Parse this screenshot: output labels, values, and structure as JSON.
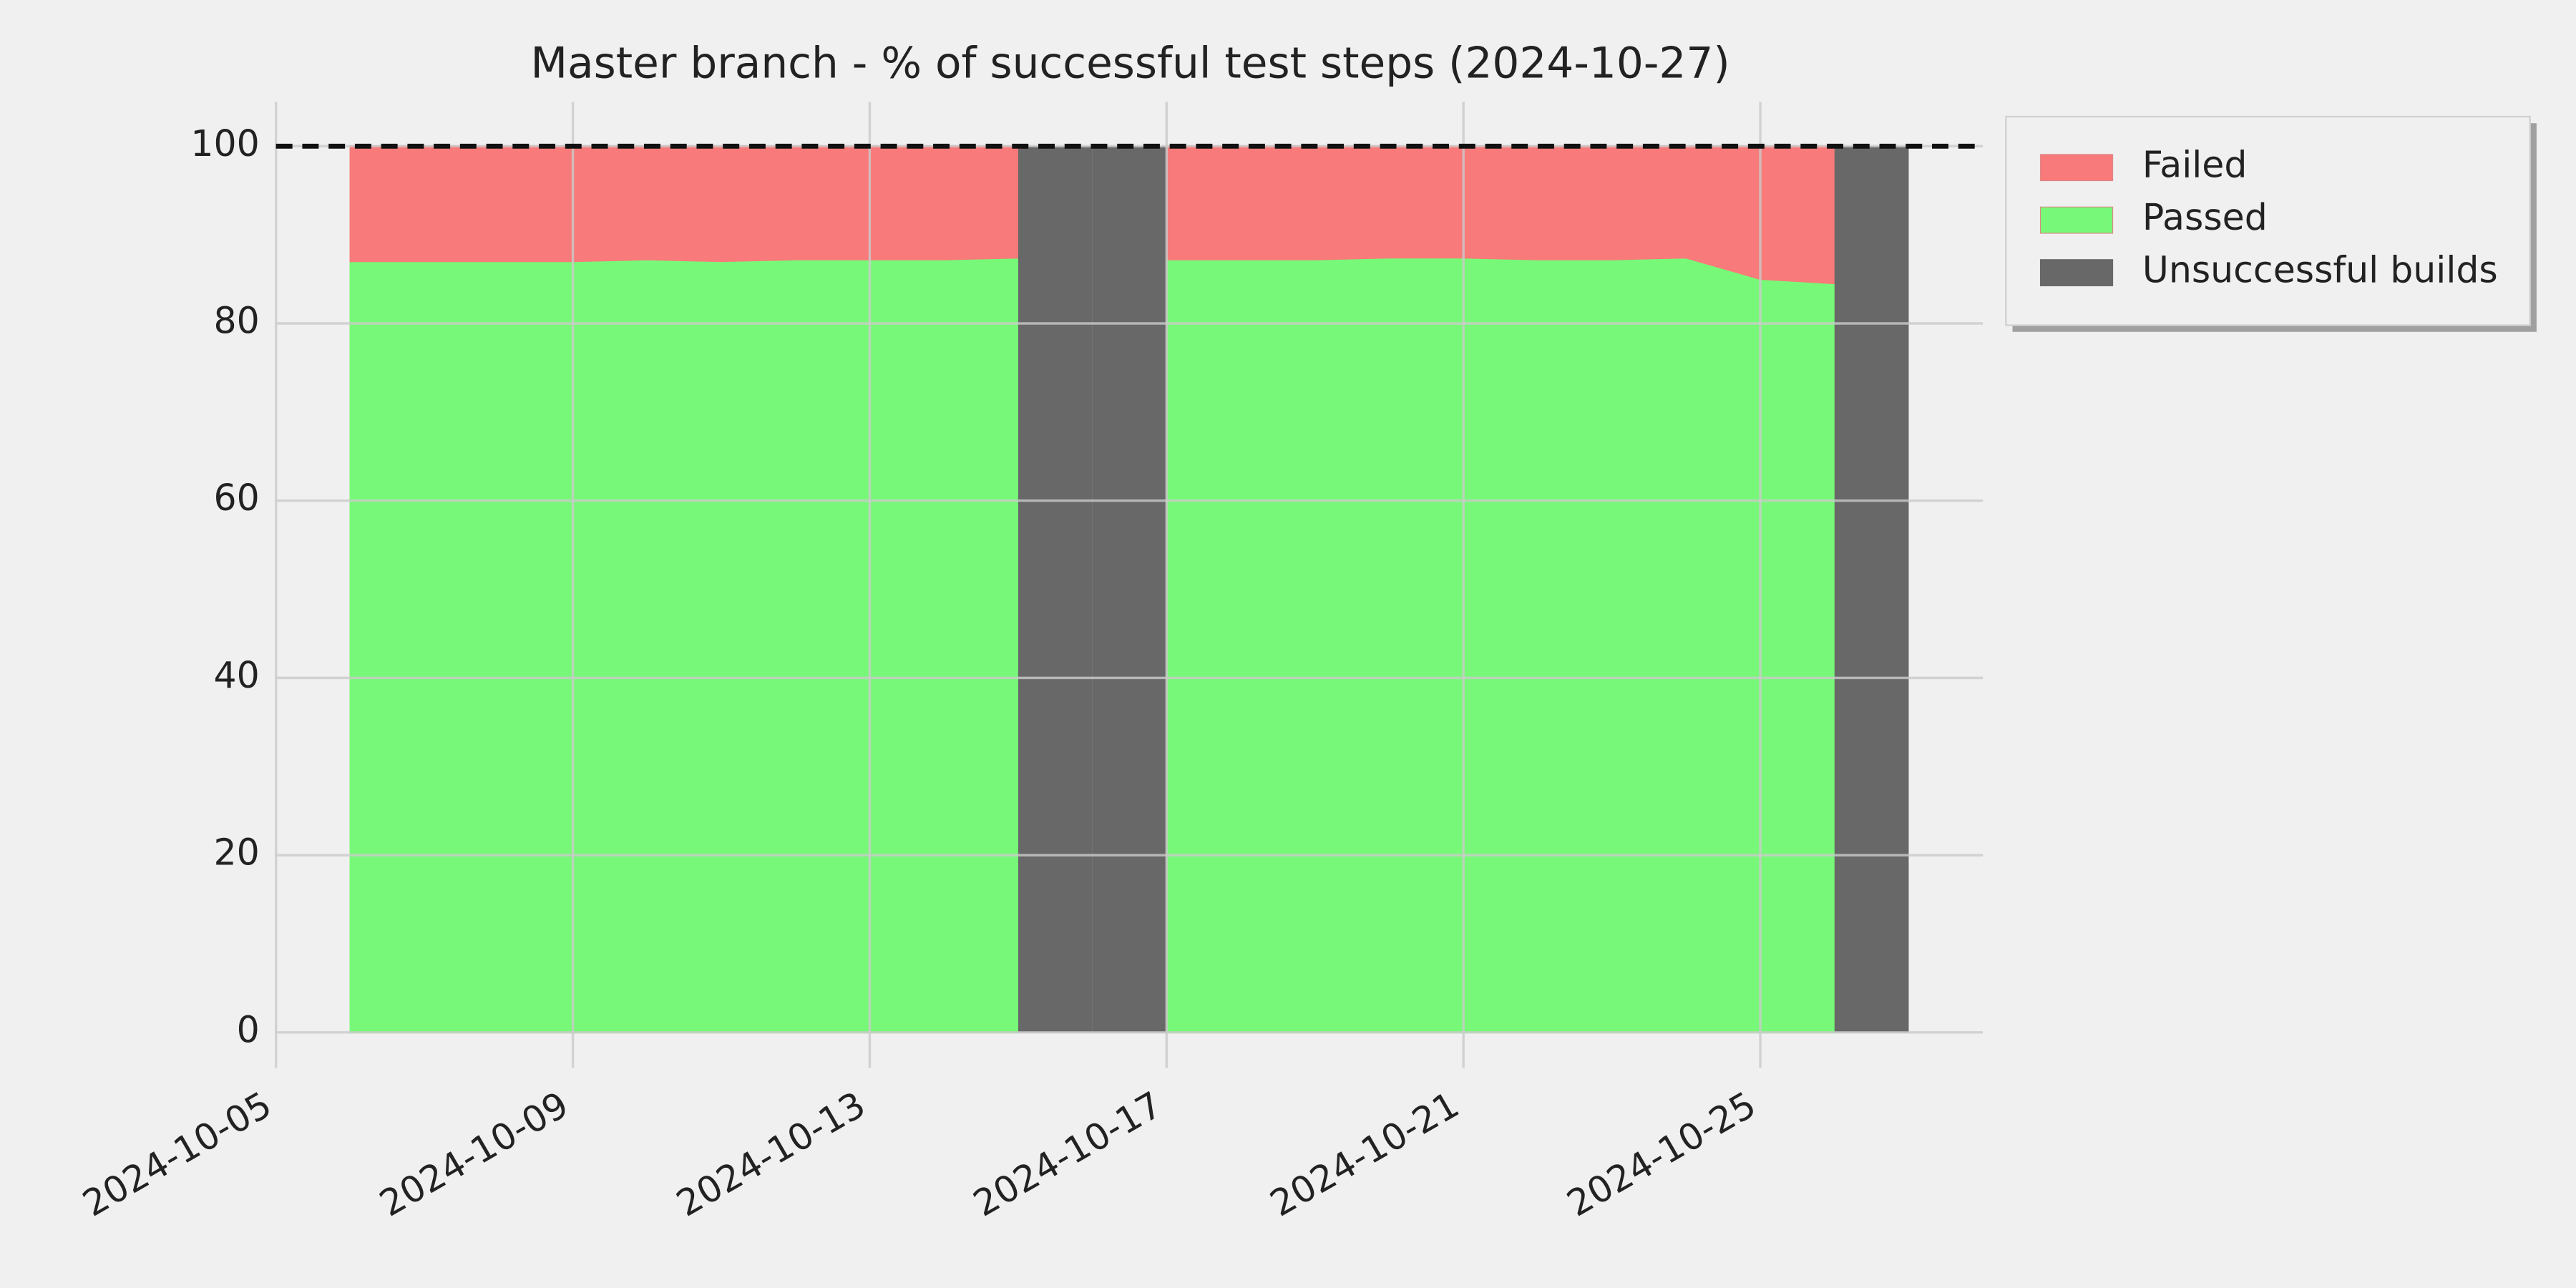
{
  "chart_data": {
    "type": "area",
    "title": "Master branch - % of successful test steps (2024-10-27)",
    "x": [
      "2024-10-06",
      "2024-10-07",
      "2024-10-08",
      "2024-10-09",
      "2024-10-10",
      "2024-10-11",
      "2024-10-12",
      "2024-10-13",
      "2024-10-14",
      "2024-10-15",
      "2024-10-16",
      "2024-10-17",
      "2024-10-18",
      "2024-10-19",
      "2024-10-20",
      "2024-10-21",
      "2024-10-22",
      "2024-10-23",
      "2024-10-24",
      "2024-10-25",
      "2024-10-26"
    ],
    "series": [
      {
        "name": "Failed",
        "color": "#f87a7a",
        "values": [
          13,
          13,
          13,
          13,
          12.8,
          13,
          12.8,
          12.8,
          12.8,
          12.6,
          null,
          12.8,
          12.8,
          12.8,
          12.6,
          12.6,
          12.8,
          12.8,
          12.6,
          15,
          15.5
        ]
      },
      {
        "name": "Passed",
        "color": "#78f878",
        "values": [
          87,
          87,
          87,
          87,
          87.2,
          87,
          87.2,
          87.2,
          87.2,
          87.4,
          null,
          87.2,
          87.2,
          87.2,
          87.4,
          87.4,
          87.2,
          87.2,
          87.4,
          85,
          84.5
        ]
      },
      {
        "name": "Unsuccessful builds",
        "type": "bar",
        "color": "#686868",
        "x": [
          "2024-10-15",
          "2024-10-16",
          "2024-10-26"
        ],
        "values": [
          100,
          100,
          100
        ]
      }
    ],
    "hline": 100,
    "xlim": [
      "2024-10-05",
      "2024-10-28"
    ],
    "xticks": [
      "2024-10-05",
      "2024-10-09",
      "2024-10-13",
      "2024-10-17",
      "2024-10-21",
      "2024-10-25"
    ],
    "ylim": [
      -4,
      105
    ],
    "yticks": [
      0,
      20,
      40,
      60,
      80,
      100
    ],
    "grid": true,
    "legend": "outside-upper-right"
  }
}
